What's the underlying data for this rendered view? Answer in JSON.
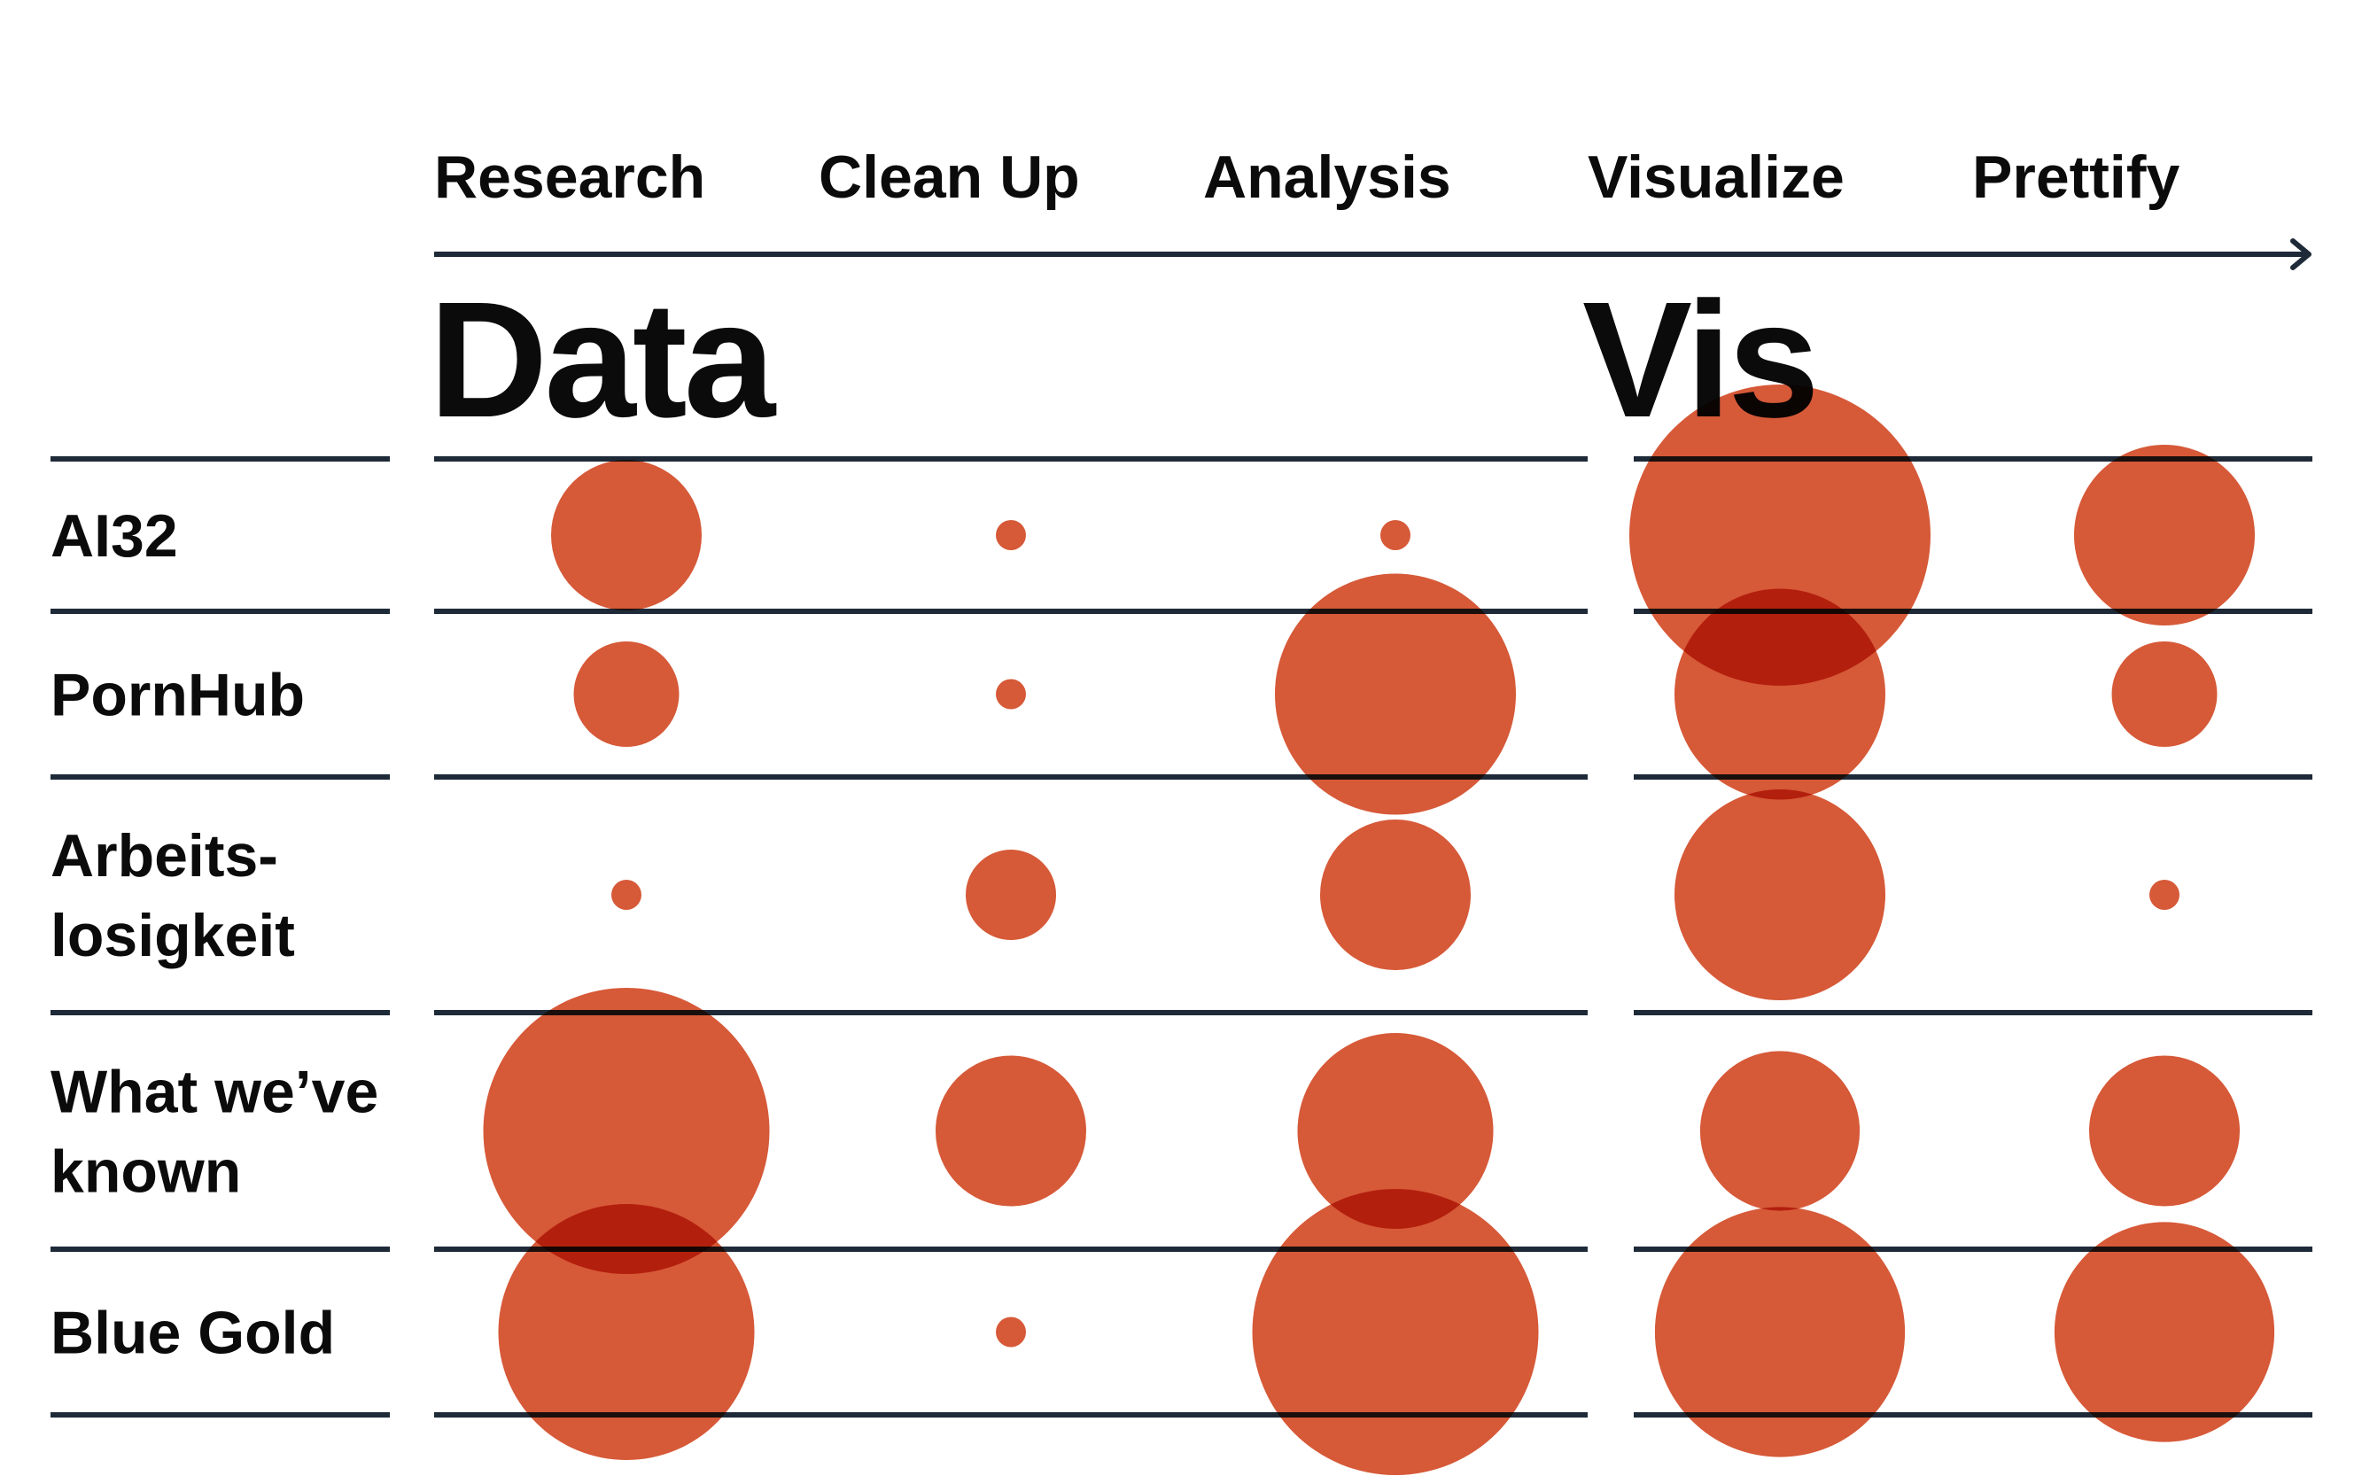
{
  "chart_data": {
    "type": "bubble-matrix",
    "title": "",
    "stages": [
      "Research",
      "Clean Up",
      "Analysis",
      "Visualize",
      "Prettify"
    ],
    "groups": [
      {
        "label": "Data",
        "stages": [
          "Research",
          "Clean Up",
          "Analysis"
        ]
      },
      {
        "label": "Vis",
        "stages": [
          "Visualize",
          "Prettify"
        ]
      }
    ],
    "projects": [
      {
        "label_lines": [
          "AI32"
        ]
      },
      {
        "label_lines": [
          "PornHub"
        ]
      },
      {
        "label_lines": [
          "Arbeits-",
          "losigkeit"
        ]
      },
      {
        "label_lines": [
          "What we’ve",
          "known"
        ]
      },
      {
        "label_lines": [
          "Blue Gold"
        ]
      }
    ],
    "values": [
      [
        5,
        1,
        1,
        10,
        6
      ],
      [
        3.5,
        1,
        8,
        7,
        3.5
      ],
      [
        1,
        3,
        5,
        7,
        1
      ],
      [
        9.5,
        5,
        6.5,
        5.3,
        5
      ],
      [
        8.5,
        1,
        9.5,
        8.3,
        7.3
      ]
    ],
    "value_unit": "relative effort (bubble size)",
    "x_direction": "left-to-right timeline arrow",
    "colors": {
      "bubble": "#d4502d",
      "rule": "#1e2a38",
      "text": "#0b0b0b"
    }
  }
}
